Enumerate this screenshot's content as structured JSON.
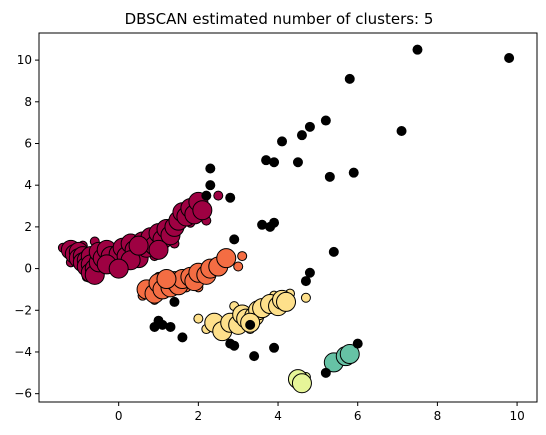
{
  "chart_data": {
    "type": "scatter",
    "title": "DBSCAN estimated number of clusters: 5",
    "xlabel": "",
    "ylabel": "",
    "xlim": [
      -2.0,
      10.5
    ],
    "ylim": [
      -6.4,
      11.3
    ],
    "xticks": [
      0,
      2,
      4,
      6,
      8,
      10
    ],
    "yticks": [
      -6,
      -4,
      -2,
      0,
      2,
      4,
      6,
      8,
      10
    ],
    "grid": false,
    "colors": {
      "noise": "#000000",
      "edge": "#000000",
      "cluster_0": "#9e0142",
      "cluster_1": "#f46d43",
      "cluster_2": "#fee08b",
      "cluster_3": "#e6f598",
      "cluster_4": "#66c2a5"
    },
    "series": [
      {
        "cluster": 0,
        "color": "#9e0142",
        "core": [
          [
            -1.2,
            0.9
          ],
          [
            -1.1,
            0.7
          ],
          [
            -1.0,
            0.8
          ],
          [
            -1.0,
            0.5
          ],
          [
            -0.9,
            0.6
          ],
          [
            -0.9,
            0.3
          ],
          [
            -0.8,
            0.4
          ],
          [
            -0.8,
            0.1
          ],
          [
            -0.7,
            0.6
          ],
          [
            -0.7,
            0.2
          ],
          [
            -0.7,
            -0.2
          ],
          [
            -0.6,
            0.0
          ],
          [
            -0.6,
            -0.3
          ],
          [
            -0.5,
            0.3
          ],
          [
            -0.5,
            0.8
          ],
          [
            -0.4,
            0.5
          ],
          [
            -0.3,
            0.9
          ],
          [
            -0.2,
            0.6
          ],
          [
            -0.1,
            0.3
          ],
          [
            0.0,
            0.7
          ],
          [
            0.1,
            1.0
          ],
          [
            0.2,
            0.6
          ],
          [
            0.3,
            1.2
          ],
          [
            0.4,
            0.9
          ],
          [
            0.5,
            0.5
          ],
          [
            0.6,
            1.3
          ],
          [
            0.7,
            1.0
          ],
          [
            0.8,
            1.5
          ],
          [
            0.9,
            1.1
          ],
          [
            1.0,
            1.7
          ],
          [
            1.1,
            1.4
          ],
          [
            1.2,
            1.9
          ],
          [
            1.3,
            1.6
          ],
          [
            1.4,
            2.0
          ],
          [
            1.5,
            2.3
          ],
          [
            1.6,
            2.7
          ],
          [
            1.7,
            2.5
          ],
          [
            1.8,
            2.9
          ],
          [
            1.9,
            2.6
          ],
          [
            2.0,
            3.2
          ],
          [
            2.1,
            2.8
          ],
          [
            0.3,
            0.4
          ],
          [
            -0.3,
            0.2
          ],
          [
            0.0,
            0.0
          ],
          [
            0.5,
            1.1
          ],
          [
            1.0,
            0.9
          ]
        ],
        "border": [
          [
            -1.4,
            1.0
          ],
          [
            -1.3,
            0.8
          ],
          [
            -1.2,
            0.3
          ],
          [
            -0.9,
            1.1
          ],
          [
            -0.6,
            1.3
          ],
          [
            0.2,
            1.3
          ],
          [
            1.4,
            1.2
          ],
          [
            1.8,
            2.2
          ],
          [
            2.2,
            2.3
          ],
          [
            2.5,
            3.5
          ],
          [
            -0.8,
            -0.4
          ],
          [
            0.1,
            0.2
          ],
          [
            0.9,
            0.6
          ]
        ]
      },
      {
        "cluster": 1,
        "color": "#f46d43",
        "core": [
          [
            0.7,
            -1.0
          ],
          [
            0.9,
            -1.2
          ],
          [
            1.0,
            -0.7
          ],
          [
            1.1,
            -1.0
          ],
          [
            1.3,
            -0.9
          ],
          [
            1.4,
            -0.6
          ],
          [
            1.5,
            -0.8
          ],
          [
            1.6,
            -0.5
          ],
          [
            1.8,
            -0.4
          ],
          [
            1.9,
            -0.6
          ],
          [
            2.0,
            -0.2
          ],
          [
            2.2,
            -0.3
          ],
          [
            2.3,
            0.0
          ],
          [
            2.5,
            0.1
          ],
          [
            2.7,
            0.5
          ],
          [
            1.2,
            -0.5
          ]
        ],
        "border": [
          [
            0.6,
            -1.3
          ],
          [
            0.9,
            -1.5
          ],
          [
            1.0,
            -0.4
          ],
          [
            1.7,
            -0.9
          ],
          [
            2.0,
            -0.9
          ],
          [
            2.6,
            0.2
          ],
          [
            3.1,
            0.6
          ],
          [
            3.0,
            0.1
          ]
        ]
      },
      {
        "cluster": 2,
        "color": "#fee08b",
        "core": [
          [
            2.4,
            -2.6
          ],
          [
            2.6,
            -3.0
          ],
          [
            2.8,
            -2.6
          ],
          [
            3.0,
            -2.7
          ],
          [
            3.1,
            -2.2
          ],
          [
            3.2,
            -2.4
          ],
          [
            3.4,
            -2.3
          ],
          [
            3.5,
            -2.0
          ],
          [
            3.6,
            -1.9
          ],
          [
            3.8,
            -1.7
          ],
          [
            4.0,
            -1.8
          ],
          [
            4.1,
            -1.5
          ],
          [
            4.2,
            -1.6
          ],
          [
            3.3,
            -2.6
          ]
        ],
        "border": [
          [
            2.0,
            -2.4
          ],
          [
            2.2,
            -2.9
          ],
          [
            2.5,
            -3.1
          ],
          [
            2.9,
            -1.8
          ],
          [
            3.3,
            -2.9
          ],
          [
            3.9,
            -1.3
          ],
          [
            4.3,
            -1.2
          ],
          [
            4.7,
            -1.4
          ]
        ]
      },
      {
        "cluster": 3,
        "color": "#e6f598",
        "core": [
          [
            4.5,
            -5.3
          ],
          [
            4.6,
            -5.5
          ]
        ],
        "border": [
          [
            4.7,
            -5.2
          ]
        ]
      },
      {
        "cluster": 4,
        "color": "#66c2a5",
        "core": [
          [
            5.4,
            -4.5
          ],
          [
            5.7,
            -4.2
          ],
          [
            5.8,
            -4.1
          ]
        ],
        "border": [
          [
            5.4,
            -4.7
          ]
        ]
      }
    ],
    "noise": [
      [
        7.5,
        10.5
      ],
      [
        9.8,
        10.1
      ],
      [
        5.8,
        9.1
      ],
      [
        7.1,
        6.6
      ],
      [
        4.8,
        6.8
      ],
      [
        4.6,
        6.4
      ],
      [
        4.1,
        6.1
      ],
      [
        5.2,
        7.1
      ],
      [
        3.7,
        5.2
      ],
      [
        3.9,
        5.1
      ],
      [
        4.5,
        5.1
      ],
      [
        2.3,
        4.8
      ],
      [
        2.3,
        4.0
      ],
      [
        5.3,
        4.4
      ],
      [
        5.9,
        4.6
      ],
      [
        2.2,
        3.5
      ],
      [
        2.8,
        3.4
      ],
      [
        3.6,
        2.1
      ],
      [
        3.9,
        2.2
      ],
      [
        3.8,
        2.0
      ],
      [
        5.4,
        0.8
      ],
      [
        2.9,
        1.4
      ],
      [
        4.8,
        -0.2
      ],
      [
        4.7,
        -0.6
      ],
      [
        1.4,
        -1.6
      ],
      [
        1.1,
        -2.7
      ],
      [
        1.3,
        -2.8
      ],
      [
        2.8,
        -3.6
      ],
      [
        2.9,
        -3.7
      ],
      [
        1.0,
        -2.5
      ],
      [
        3.4,
        -4.2
      ],
      [
        3.9,
        -3.8
      ],
      [
        5.2,
        -5.0
      ],
      [
        6.0,
        -3.6
      ],
      [
        3.3,
        -2.7
      ],
      [
        1.6,
        -3.3
      ],
      [
        0.9,
        -2.8
      ]
    ]
  }
}
